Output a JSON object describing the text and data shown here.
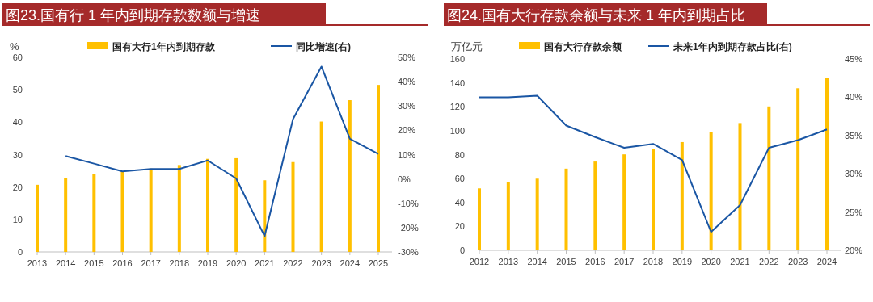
{
  "chart_data": [
    {
      "type": "bar",
      "title": "图23.国有行 1 年内到期存款数额与增速",
      "ylabel": "%",
      "categories": [
        "2013",
        "2014",
        "2015",
        "2016",
        "2017",
        "2018",
        "2019",
        "2020",
        "2021",
        "2022",
        "2023",
        "2024",
        "2025"
      ],
      "series": [
        {
          "name": "国有大行1年内到期存款",
          "color": "#ffc000",
          "values": [
            20.7,
            22.9,
            24.0,
            24.9,
            25.7,
            26.8,
            28.7,
            28.9,
            22.1,
            27.7,
            40.2,
            46.8,
            51.5
          ]
        },
        {
          "name": "同比增速(右)",
          "type": "line",
          "axis": "y2",
          "color": "#1a56a4",
          "values": [
            null,
            9.4,
            6.3,
            3.1,
            4.1,
            4.1,
            7.6,
            0.2,
            -23.5,
            24.6,
            46.2,
            16.5,
            10.3
          ]
        }
      ],
      "ylim": [
        0,
        60
      ],
      "yticks": [
        0,
        10,
        20,
        30,
        40,
        50,
        60
      ],
      "y2lim": [
        -30,
        50
      ],
      "y2ticks": [
        {
          "value": -30,
          "label": "-30%"
        },
        {
          "value": -20,
          "label": "-20%"
        },
        {
          "value": -10,
          "label": "-10%"
        },
        {
          "value": 0,
          "label": "0%"
        },
        {
          "value": 10,
          "label": "10%"
        },
        {
          "value": 20,
          "label": "20%"
        },
        {
          "value": 30,
          "label": "30%"
        },
        {
          "value": 40,
          "label": "40%"
        },
        {
          "value": 50,
          "label": "50%"
        }
      ],
      "legend": "top",
      "grid": false
    },
    {
      "type": "bar",
      "title": "图24.国有大行存款余额与未来 1 年内到期占比",
      "ylabel": "万亿元",
      "categories": [
        "2012",
        "2013",
        "2014",
        "2015",
        "2016",
        "2017",
        "2018",
        "2019",
        "2020",
        "2021",
        "2022",
        "2023",
        "2024"
      ],
      "series": [
        {
          "name": "国有大行存款余额",
          "color": "#ffc000",
          "values": [
            51.8,
            56.7,
            59.9,
            68.3,
            74.2,
            80.2,
            84.9,
            90.5,
            98.7,
            106.4,
            120.3,
            135.5,
            144.1
          ]
        },
        {
          "name": "未来1年内到期存款占比(右)",
          "type": "line",
          "axis": "y2",
          "color": "#1a56a4",
          "values": [
            40.0,
            40.0,
            40.2,
            36.3,
            34.8,
            33.4,
            33.9,
            31.8,
            22.4,
            25.9,
            33.4,
            34.4,
            35.8
          ]
        }
      ],
      "ylim": [
        0,
        160
      ],
      "yticks": [
        0,
        20,
        40,
        60,
        80,
        100,
        120,
        140,
        160
      ],
      "y2lim": [
        20,
        45
      ],
      "y2ticks": [
        {
          "value": 20,
          "label": "20%"
        },
        {
          "value": 25,
          "label": "25%"
        },
        {
          "value": 30,
          "label": "30%"
        },
        {
          "value": 35,
          "label": "35%"
        },
        {
          "value": 40,
          "label": "40%"
        },
        {
          "value": 45,
          "label": "45%"
        }
      ],
      "legend": "top",
      "grid": false
    }
  ]
}
